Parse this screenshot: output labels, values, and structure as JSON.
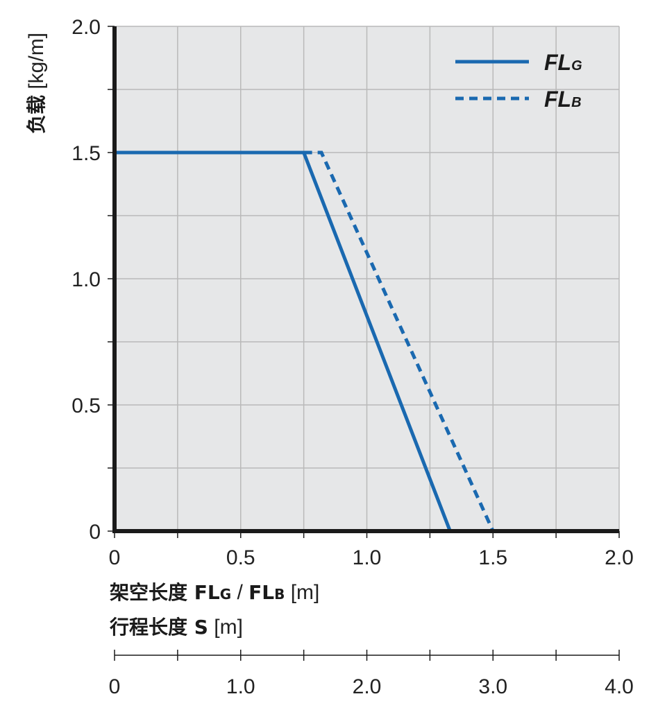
{
  "chart_data": {
    "type": "line",
    "x_axis": {
      "label_bold": "架空长度 FL",
      "label_sub_g": "G",
      "label_sep": " / ",
      "label_bold_2": "FL",
      "label_sub_b": "B",
      "label_unit": " [m]",
      "ticks": [
        0,
        0.5,
        1.0,
        1.5,
        2.0
      ],
      "tick_labels": [
        "0",
        "0.5",
        "1.0",
        "1.5",
        "2.0"
      ],
      "range": [
        0,
        2.0
      ],
      "minor_step": 0.25
    },
    "secondary_x_axis": {
      "label_bold": "行程长度 S",
      "label_unit": " [m]",
      "ticks": [
        0,
        1.0,
        2.0,
        3.0,
        4.0
      ],
      "tick_labels": [
        "0",
        "1.0",
        "2.0",
        "3.0",
        "4.0"
      ],
      "range": [
        0,
        4.0
      ],
      "minor_step": 0.5
    },
    "y_axis": {
      "label_bold": "负载",
      "label_unit": " [kg/m]",
      "ticks": [
        0,
        0.5,
        1.0,
        1.5,
        2.0
      ],
      "tick_labels": [
        "0",
        "0.5",
        "1.0",
        "1.5",
        "2.0"
      ],
      "range": [
        0,
        2.0
      ],
      "minor_step": 0.25
    },
    "grid": true,
    "legend_position": "top-right",
    "series": [
      {
        "name": "FL",
        "name_sub": "G",
        "style": "solid",
        "color": "#1a69b0",
        "x": [
          0,
          0.75,
          1.33
        ],
        "y": [
          1.5,
          1.5,
          0
        ]
      },
      {
        "name": "FL",
        "name_sub": "B",
        "style": "dashed",
        "color": "#1a69b0",
        "x": [
          0.75,
          0.82,
          1.5
        ],
        "y": [
          1.5,
          1.5,
          0
        ]
      }
    ],
    "colors": {
      "plot_bg": "#e6e7e8",
      "grid": "#b9b9b9",
      "axis": "#1a1a1a"
    }
  }
}
